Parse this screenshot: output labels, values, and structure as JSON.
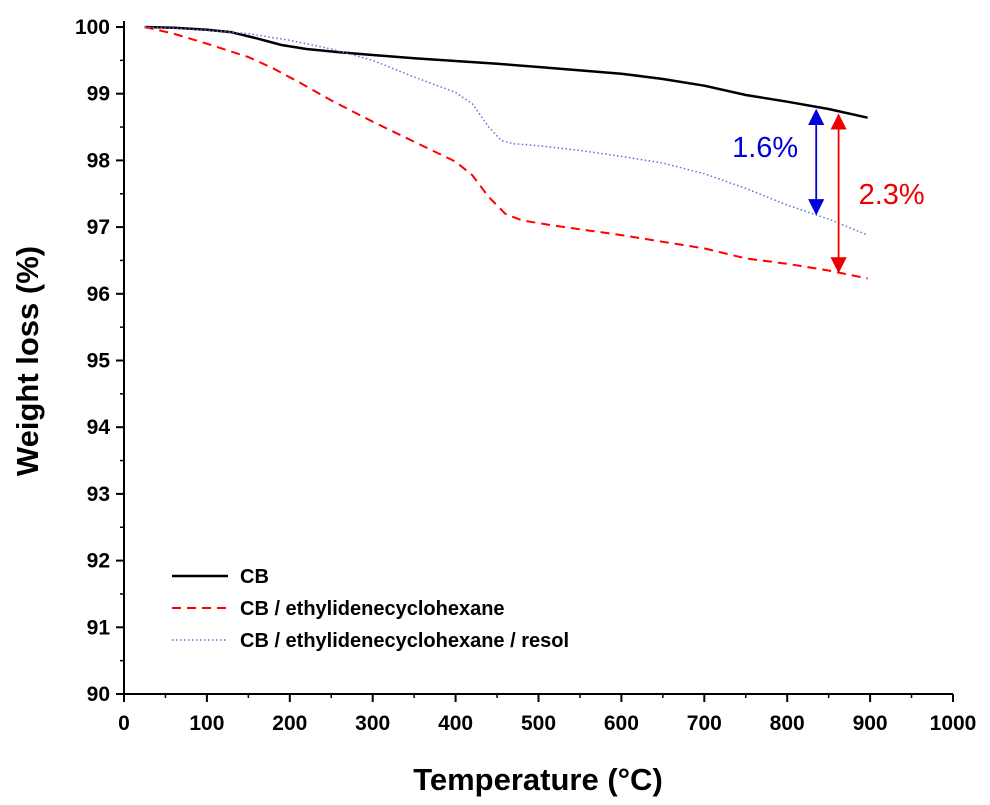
{
  "chart_data": {
    "type": "line",
    "xlabel": "Temperature (°C)",
    "ylabel": "Weight loss (%)",
    "xlim": [
      0,
      1000
    ],
    "ylim": [
      90,
      100
    ],
    "xticks": [
      0,
      100,
      200,
      300,
      400,
      500,
      600,
      700,
      800,
      900,
      1000
    ],
    "yticks": [
      90,
      91,
      92,
      93,
      94,
      95,
      96,
      97,
      98,
      99,
      100
    ],
    "grid": false,
    "legend_position": "bottom-left",
    "series": [
      {
        "name": "CB",
        "color": "#000000",
        "style": "solid",
        "x": [
          25,
          60,
          100,
          130,
          160,
          190,
          220,
          260,
          300,
          350,
          400,
          450,
          500,
          550,
          600,
          650,
          700,
          750,
          800,
          850,
          897
        ],
        "y": [
          100,
          99.99,
          99.96,
          99.92,
          99.83,
          99.73,
          99.67,
          99.62,
          99.58,
          99.53,
          99.49,
          99.45,
          99.4,
          99.35,
          99.3,
          99.22,
          99.12,
          98.98,
          98.88,
          98.77,
          98.64
        ]
      },
      {
        "name": "CB / ethylidenecyclohexane",
        "color": "#ff0000",
        "style": "dashed",
        "x": [
          25,
          60,
          100,
          150,
          180,
          210,
          250,
          300,
          350,
          400,
          420,
          440,
          460,
          480,
          520,
          600,
          650,
          700,
          750,
          800,
          850,
          897
        ],
        "y": [
          100,
          99.9,
          99.75,
          99.55,
          99.38,
          99.18,
          98.9,
          98.58,
          98.28,
          97.98,
          97.78,
          97.45,
          97.2,
          97.1,
          97.02,
          96.88,
          96.78,
          96.68,
          96.53,
          96.45,
          96.35,
          96.23
        ]
      },
      {
        "name": "CB / ethylidenecyclohexane / resol",
        "color": "#6a6ae0",
        "style": "dotted",
        "x": [
          25,
          60,
          100,
          150,
          200,
          250,
          300,
          350,
          400,
          420,
          440,
          455,
          470,
          500,
          550,
          600,
          650,
          700,
          750,
          800,
          850,
          897
        ],
        "y": [
          100,
          99.98,
          99.95,
          99.9,
          99.8,
          99.67,
          99.5,
          99.25,
          99.02,
          98.85,
          98.5,
          98.3,
          98.25,
          98.22,
          98.15,
          98.06,
          97.96,
          97.8,
          97.58,
          97.33,
          97.12,
          96.88
        ]
      }
    ],
    "annotations": [
      {
        "text": "1.6%",
        "color": "#0000dd",
        "arrow_x": 835,
        "y_from": 97.2,
        "y_to": 98.75
      },
      {
        "text": "2.3%",
        "color": "#ee0000",
        "arrow_x": 862,
        "y_from": 96.33,
        "y_to": 98.68
      }
    ]
  }
}
